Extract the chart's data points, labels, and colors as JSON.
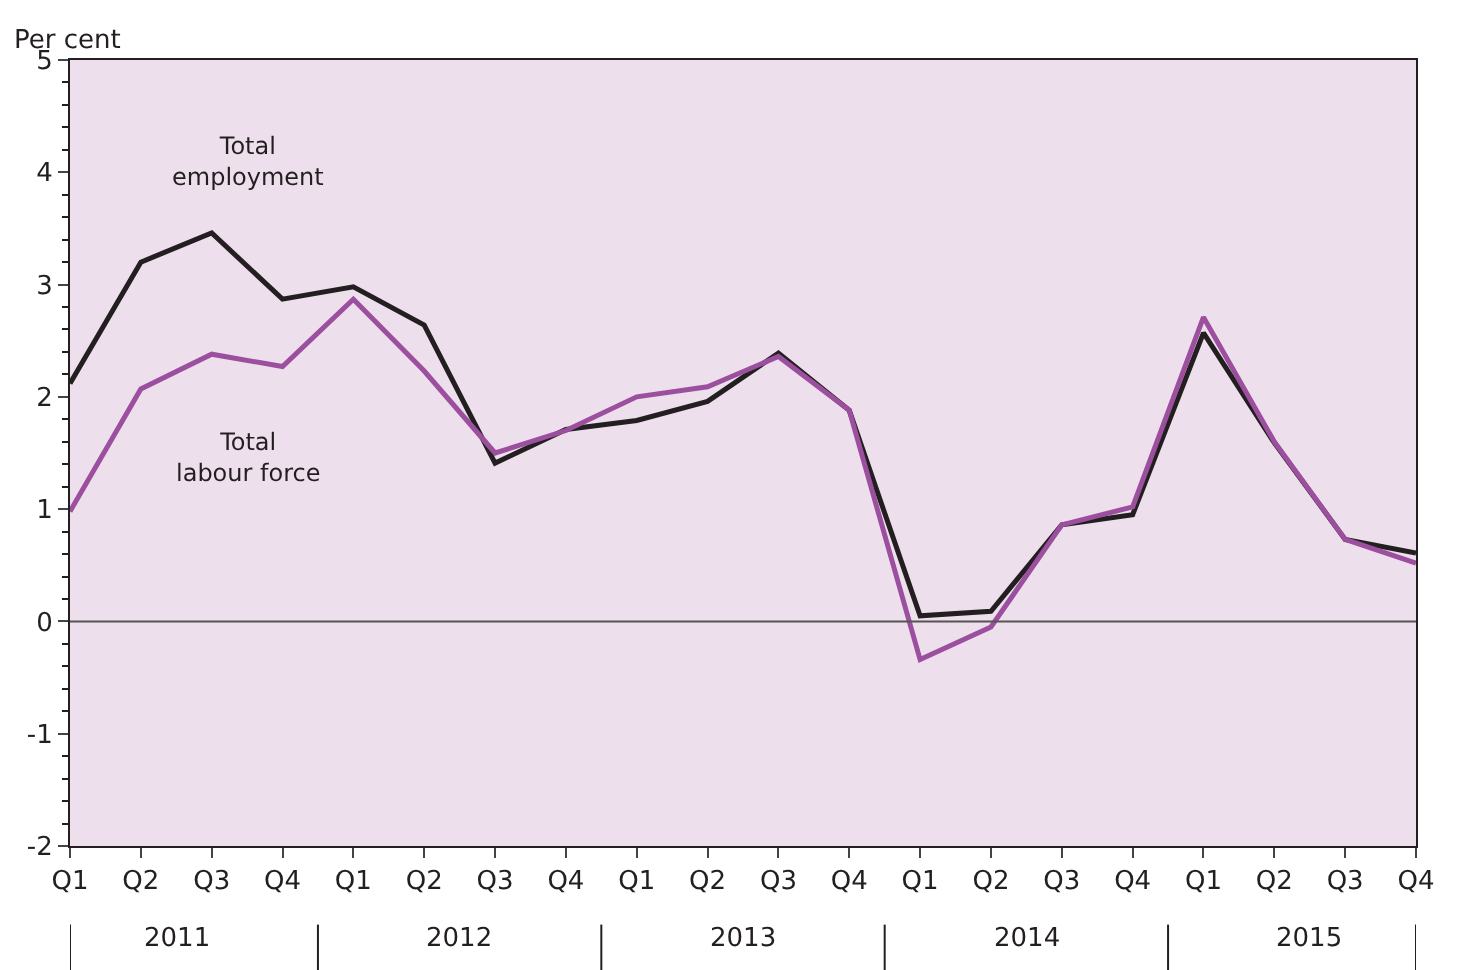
{
  "chart_data": {
    "type": "line",
    "ylabel": "Per cent",
    "categories": [
      "Q1",
      "Q2",
      "Q3",
      "Q4",
      "Q1",
      "Q2",
      "Q3",
      "Q4",
      "Q1",
      "Q2",
      "Q3",
      "Q4",
      "Q1",
      "Q2",
      "Q3",
      "Q4",
      "Q1",
      "Q2",
      "Q3",
      "Q4"
    ],
    "annotations": [
      "2011",
      "2012",
      "2013",
      "2014",
      "2015"
    ],
    "series": [
      {
        "name": "Total employment",
        "color": "#231f20",
        "values": [
          2.12,
          3.2,
          3.46,
          2.87,
          2.98,
          2.64,
          1.41,
          1.71,
          1.79,
          1.96,
          2.39,
          1.88,
          0.05,
          0.09,
          0.86,
          0.95,
          2.57,
          1.59,
          0.73,
          0.61
        ]
      },
      {
        "name": "Total labour force",
        "color": "#9b4f9e",
        "values": [
          0.98,
          2.07,
          2.38,
          2.27,
          2.87,
          2.23,
          1.5,
          1.7,
          2.0,
          2.09,
          2.36,
          1.88,
          -0.34,
          -0.05,
          0.86,
          1.02,
          2.71,
          1.6,
          0.73,
          0.52
        ]
      }
    ],
    "ylim": [
      -2,
      5
    ],
    "yticks": [
      -2,
      -1,
      0,
      1,
      2,
      3,
      4,
      5
    ],
    "ref_lines": [
      {
        "axis": "y",
        "value": 0,
        "color": "#555555"
      }
    ],
    "grid": false,
    "legend": false,
    "marker": "none",
    "line_style": "solid"
  }
}
